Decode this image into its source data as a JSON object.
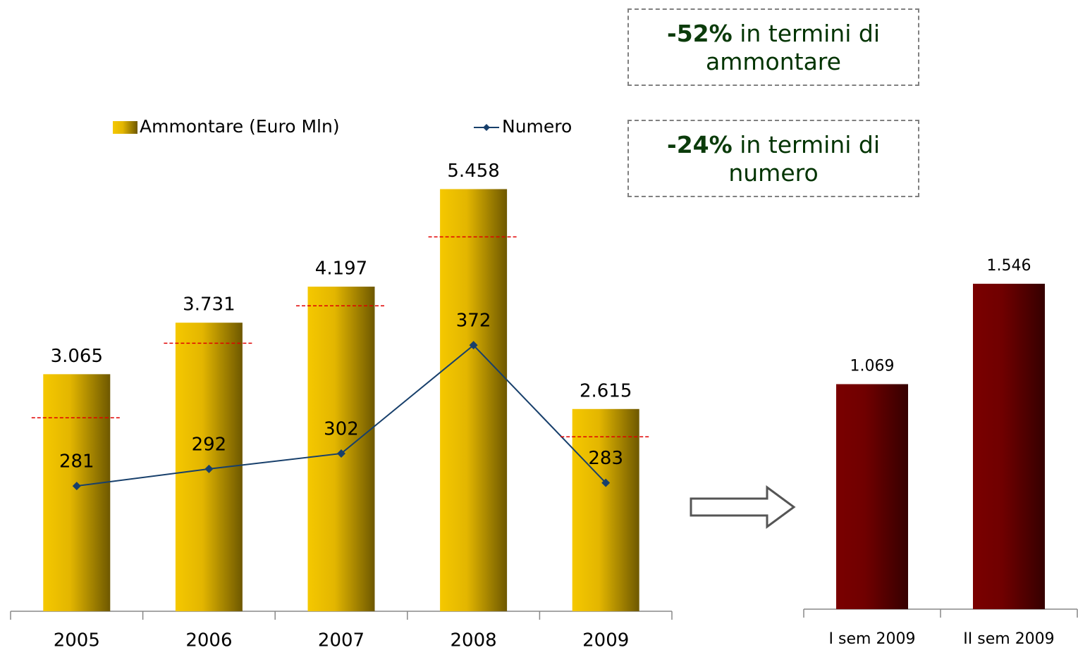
{
  "chart_data": [
    {
      "type": "bar",
      "categories": [
        "2005",
        "2006",
        "2007",
        "2008",
        "2009"
      ],
      "series": [
        {
          "name": "Ammontare (Euro Mln)",
          "color": "#f5c800",
          "values": [
            3065,
            3731,
            4197,
            5458,
            2615
          ],
          "value_labels": [
            "3.065",
            "3.731",
            "4.197",
            "5.458",
            "2.615"
          ]
        },
        {
          "name": "Numero",
          "type": "line",
          "axis": "y2",
          "color": "#173f6b",
          "values": [
            281,
            292,
            302,
            372,
            283
          ]
        }
      ],
      "markers": {
        "color": "#e00000",
        "values": [
          2502,
          3466,
          3949,
          4840,
          2256
        ]
      },
      "ylim": [
        0,
        6000
      ],
      "y2lim": [
        200,
        500
      ],
      "legend": "top"
    },
    {
      "type": "bar",
      "categories": [
        "I sem 2009",
        "II sem 2009"
      ],
      "series": [
        {
          "color": "#7a0000",
          "values": [
            1069,
            1546
          ],
          "value_labels": [
            "1.069",
            "1.546"
          ]
        }
      ],
      "ylim": [
        0,
        1800
      ]
    }
  ],
  "annotations": [
    {
      "highlight": "-52%",
      "text": "in termini di ammontare"
    },
    {
      "highlight": "-24%",
      "text": "in termini di numero"
    }
  ]
}
